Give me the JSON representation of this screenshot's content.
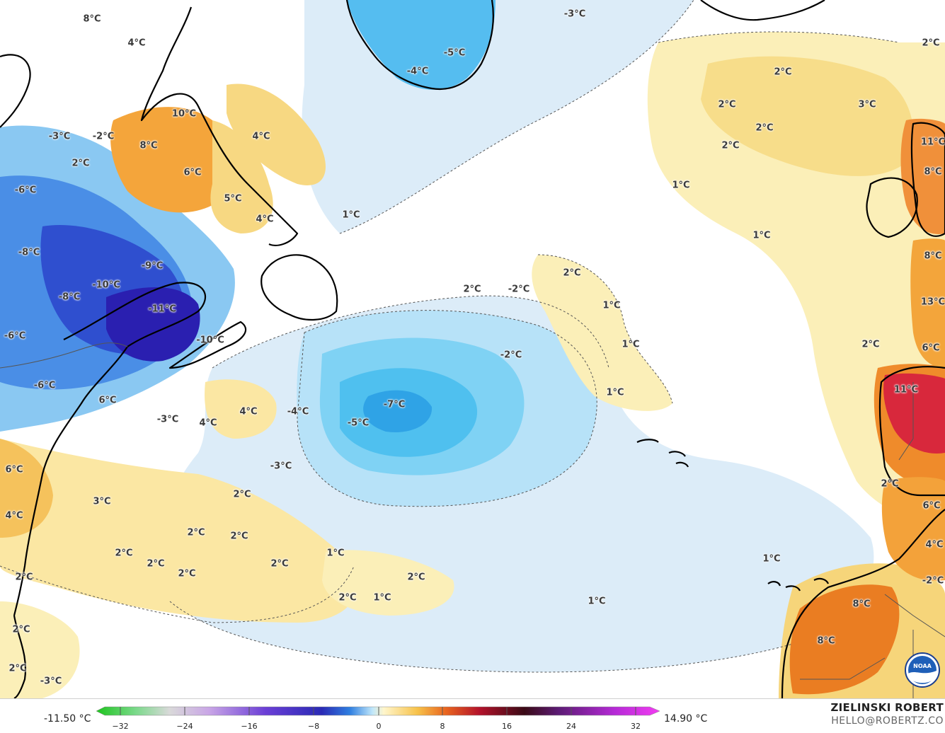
{
  "scale": {
    "min_label": "-11.50 °C",
    "max_label": "14.90 °C",
    "ticks": [
      "−32",
      "−24",
      "−16",
      "−8",
      "0",
      "8",
      "16",
      "24",
      "32"
    ]
  },
  "credit": {
    "name": "ZIELINSKI ROBERT",
    "email": "HELLO@ROBERTZ.CO"
  },
  "logo": {
    "name": "noaa-logo",
    "label": "NOAA"
  },
  "colors": {
    "ocean_base": "#ffffff",
    "light_blue": "#dcecf8",
    "mid_blue": "#9fd8f5",
    "cyan": "#55c8f0",
    "blue": "#3f6fdc",
    "deep_blue": "#2424b8",
    "pale_yellow": "#fbefb8",
    "yellow": "#f6dc85",
    "orange": "#f3a53b",
    "dark_orange": "#e97b1f",
    "red": "#d6322a",
    "magenta_red": "#d42346",
    "land_outline": "#000000"
  },
  "map_labels": [
    {
      "text": "8°C"
    },
    {
      "text": "4°C"
    },
    {
      "text": "-3°C"
    },
    {
      "text": "-5°C"
    },
    {
      "text": "-4°C"
    },
    {
      "text": "2°C"
    },
    {
      "text": "10°C"
    },
    {
      "text": "4°C"
    },
    {
      "text": "-3°C"
    },
    {
      "text": "-2°C"
    },
    {
      "text": "8°C"
    },
    {
      "text": "2°C"
    },
    {
      "text": "6°C"
    },
    {
      "text": "-6°C"
    },
    {
      "text": "5°C"
    },
    {
      "text": "4°C"
    },
    {
      "text": "1°C"
    },
    {
      "text": "-8°C"
    },
    {
      "text": "-9°C"
    },
    {
      "text": "-10°C"
    },
    {
      "text": "-8°C"
    },
    {
      "text": "-11°C"
    },
    {
      "text": "-6°C"
    },
    {
      "text": "-10°C"
    },
    {
      "text": "-6°C"
    },
    {
      "text": "6°C"
    },
    {
      "text": "-3°C"
    },
    {
      "text": "4°C"
    },
    {
      "text": "4°C"
    },
    {
      "text": "-4°C"
    },
    {
      "text": "-3°C"
    },
    {
      "text": "6°C"
    },
    {
      "text": "3°C"
    },
    {
      "text": "2°C"
    },
    {
      "text": "4°C"
    },
    {
      "text": "2°C"
    },
    {
      "text": "2°C"
    },
    {
      "text": "2°C"
    },
    {
      "text": "2°C"
    },
    {
      "text": "2°C"
    },
    {
      "text": "2°C"
    },
    {
      "text": "1°C"
    },
    {
      "text": "2°C"
    },
    {
      "text": "2°C"
    },
    {
      "text": "1°C"
    },
    {
      "text": "2°C"
    },
    {
      "text": "2°C"
    },
    {
      "text": "-3°C"
    },
    {
      "text": "2°C"
    },
    {
      "text": "-2°C"
    },
    {
      "text": "2°C"
    },
    {
      "text": "1°C"
    },
    {
      "text": "1°C"
    },
    {
      "text": "-2°C"
    },
    {
      "text": "1°C"
    },
    {
      "text": "-7°C"
    },
    {
      "text": "-5°C"
    },
    {
      "text": "1°C"
    },
    {
      "text": "2°C"
    },
    {
      "text": "2°C"
    },
    {
      "text": "3°C"
    },
    {
      "text": "2°C"
    },
    {
      "text": "2°C"
    },
    {
      "text": "2°C"
    },
    {
      "text": "1°C"
    },
    {
      "text": "1°C"
    },
    {
      "text": "11°C"
    },
    {
      "text": "8°C"
    },
    {
      "text": "8°C"
    },
    {
      "text": "13°C"
    },
    {
      "text": "2°C"
    },
    {
      "text": "6°C"
    },
    {
      "text": "11°C"
    },
    {
      "text": "2°C"
    },
    {
      "text": "6°C"
    },
    {
      "text": "4°C"
    },
    {
      "text": "-2°C"
    },
    {
      "text": "8°C"
    },
    {
      "text": "8°C"
    },
    {
      "text": "1°C"
    }
  ]
}
